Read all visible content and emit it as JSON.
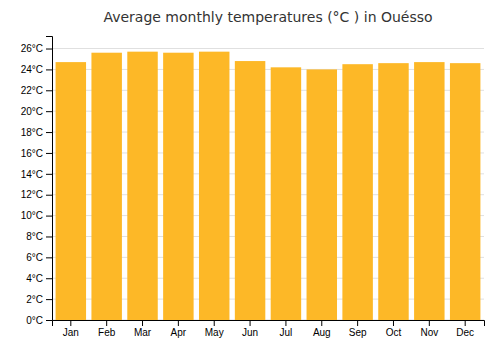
{
  "chart_data": {
    "type": "bar",
    "title": "Average monthly temperatures (°C ) in Ouésso",
    "categories": [
      "Jan",
      "Feb",
      "Mar",
      "Apr",
      "May",
      "Jun",
      "Jul",
      "Aug",
      "Sep",
      "Oct",
      "Nov",
      "Dec"
    ],
    "values": [
      24.7,
      25.6,
      25.7,
      25.6,
      25.7,
      24.8,
      24.2,
      24.0,
      24.5,
      24.6,
      24.7,
      24.6
    ],
    "color": "#FDB827",
    "ylim": [
      0,
      27.2
    ],
    "yticks": [
      {
        "value": 0,
        "label": "0°C"
      },
      {
        "value": 2,
        "label": "2°C"
      },
      {
        "value": 4,
        "label": "4°C"
      },
      {
        "value": 6,
        "label": "6°C"
      },
      {
        "value": 8,
        "label": "8°C"
      },
      {
        "value": 10,
        "label": "10°C"
      },
      {
        "value": 12,
        "label": "12°C"
      },
      {
        "value": 14,
        "label": "14°C"
      },
      {
        "value": 16,
        "label": "16°C"
      },
      {
        "value": 18,
        "label": "18°C"
      },
      {
        "value": 20,
        "label": "20°C"
      },
      {
        "value": 22,
        "label": "22°C"
      },
      {
        "value": 24,
        "label": "24°C"
      },
      {
        "value": 26,
        "label": "26°C"
      }
    ],
    "grid": true
  }
}
